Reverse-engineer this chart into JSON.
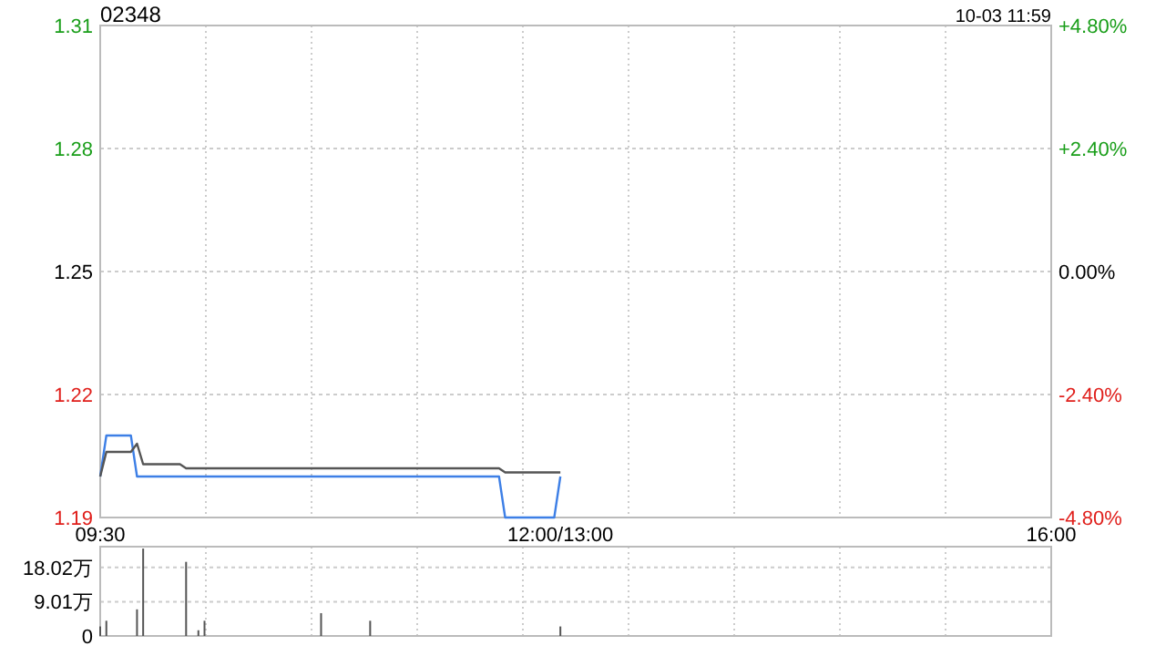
{
  "chart_data": [
    {
      "type": "line",
      "title": "02348",
      "annotations": [
        "10-03 11:59"
      ],
      "categories": [
        "09:30",
        null,
        null,
        null,
        null,
        null,
        null,
        null,
        null,
        null,
        null,
        null,
        null,
        null,
        null,
        null,
        null,
        null,
        null,
        null,
        null,
        null,
        null,
        null,
        null,
        null,
        null,
        null,
        null,
        null,
        null,
        null,
        null,
        null,
        null,
        null,
        null,
        null,
        null,
        null,
        null,
        null,
        null,
        null,
        null,
        null,
        null,
        null,
        null,
        null,
        null,
        null,
        null,
        null,
        null,
        null,
        null,
        null,
        null,
        null,
        null,
        null,
        null,
        null,
        null,
        null,
        null,
        null,
        null,
        null,
        null,
        null,
        null,
        null,
        null,
        "12:00/13:00",
        null,
        null,
        null,
        null,
        null,
        null,
        null,
        null,
        null,
        null,
        null,
        null,
        null,
        null,
        null,
        null,
        null,
        null,
        null,
        null,
        null,
        null,
        null,
        null,
        null,
        null,
        null,
        null,
        null,
        null,
        null,
        null,
        null,
        null,
        null,
        null,
        null,
        null,
        null,
        null,
        null,
        null,
        null,
        null,
        null,
        null,
        null,
        null,
        null,
        null,
        null,
        null,
        null,
        null,
        null,
        null,
        null,
        null,
        null,
        null,
        null,
        null,
        null,
        null,
        null,
        null,
        null,
        null,
        null,
        null,
        null,
        null,
        null,
        null,
        null,
        null,
        null,
        null,
        null,
        "16:00"
      ],
      "ylim": [
        1.19,
        1.31
      ],
      "yticks": [
        1.19,
        1.22,
        1.25,
        1.28,
        1.31
      ],
      "y2lim": [
        -4.8,
        4.8
      ],
      "y2ticks": [
        {
          "value": -4.8,
          "label": "-4.80%"
        },
        {
          "value": -2.4,
          "label": "-2.40%"
        },
        {
          "value": 0,
          "label": "0.00%"
        },
        {
          "value": 2.4,
          "label": "+2.40%"
        },
        {
          "value": 4.8,
          "label": "+4.80%"
        }
      ],
      "grid": true,
      "series": [
        {
          "color": "#3d7fe6",
          "values": [
            1.2,
            1.21,
            1.21,
            1.21,
            1.21,
            1.21,
            1.2,
            1.2,
            1.2,
            1.2,
            1.2,
            1.2,
            1.2,
            1.2,
            1.2,
            1.2,
            1.2,
            1.2,
            1.2,
            1.2,
            1.2,
            1.2,
            1.2,
            1.2,
            1.2,
            1.2,
            1.2,
            1.2,
            1.2,
            1.2,
            1.2,
            1.2,
            1.2,
            1.2,
            1.2,
            1.2,
            1.2,
            1.2,
            1.2,
            1.2,
            1.2,
            1.2,
            1.2,
            1.2,
            1.2,
            1.2,
            1.2,
            1.2,
            1.2,
            1.2,
            1.2,
            1.2,
            1.2,
            1.2,
            1.2,
            1.2,
            1.2,
            1.2,
            1.2,
            1.2,
            1.2,
            1.2,
            1.2,
            1.2,
            1.2,
            1.2,
            1.19,
            1.19,
            1.19,
            1.19,
            1.19,
            1.19,
            1.19,
            1.19,
            1.19,
            1.2,
            null,
            null,
            null,
            null,
            null,
            null,
            null,
            null,
            null,
            null,
            null,
            null,
            null,
            null,
            null,
            null,
            null,
            null,
            null,
            null,
            null,
            null,
            null,
            null,
            null,
            null,
            null,
            null,
            null,
            null,
            null,
            null,
            null,
            null,
            null,
            null,
            null,
            null,
            null,
            null,
            null,
            null,
            null,
            null,
            null,
            null,
            null,
            null,
            null,
            null,
            null,
            null,
            null,
            null,
            null,
            null,
            null,
            null,
            null,
            null,
            null,
            null,
            null,
            null,
            null,
            null,
            null,
            null,
            null,
            null,
            null,
            null,
            null,
            null,
            null,
            null,
            null,
            null,
            null,
            null
          ]
        },
        {
          "color": "#555555",
          "values": [
            1.2,
            1.206,
            1.206,
            1.206,
            1.206,
            1.206,
            1.208,
            1.203,
            1.203,
            1.203,
            1.203,
            1.203,
            1.203,
            1.203,
            1.202,
            1.202,
            1.202,
            1.202,
            1.202,
            1.202,
            1.202,
            1.202,
            1.202,
            1.202,
            1.202,
            1.202,
            1.202,
            1.202,
            1.202,
            1.202,
            1.202,
            1.202,
            1.202,
            1.202,
            1.202,
            1.202,
            1.202,
            1.202,
            1.202,
            1.202,
            1.202,
            1.202,
            1.202,
            1.202,
            1.202,
            1.202,
            1.202,
            1.202,
            1.202,
            1.202,
            1.202,
            1.202,
            1.202,
            1.202,
            1.202,
            1.202,
            1.202,
            1.202,
            1.202,
            1.202,
            1.202,
            1.202,
            1.202,
            1.202,
            1.202,
            1.202,
            1.201,
            1.201,
            1.201,
            1.201,
            1.201,
            1.201,
            1.201,
            1.201,
            1.201,
            1.201,
            null,
            null,
            null,
            null,
            null,
            null,
            null,
            null,
            null,
            null,
            null,
            null,
            null,
            null,
            null,
            null,
            null,
            null,
            null,
            null,
            null,
            null,
            null,
            null,
            null,
            null,
            null,
            null,
            null,
            null,
            null,
            null,
            null,
            null,
            null,
            null,
            null,
            null,
            null,
            null,
            null,
            null,
            null,
            null,
            null,
            null,
            null,
            null,
            null,
            null,
            null,
            null,
            null,
            null,
            null,
            null,
            null,
            null,
            null,
            null,
            null,
            null,
            null,
            null,
            null,
            null,
            null,
            null,
            null,
            null,
            null,
            null,
            null,
            null,
            null,
            null,
            null,
            null,
            null,
            null
          ]
        }
      ]
    },
    {
      "type": "bar",
      "categories": [
        null,
        null,
        null,
        null,
        null,
        null,
        null,
        null,
        null,
        null,
        null,
        null,
        null,
        null,
        null,
        null,
        null,
        null,
        null,
        null,
        null,
        null,
        null,
        null,
        null,
        null,
        null,
        null,
        null,
        null,
        null,
        null,
        null,
        null,
        null,
        null,
        null,
        null,
        null,
        null,
        null,
        null,
        null,
        null,
        null,
        null,
        null,
        null,
        null,
        null,
        null,
        null,
        null,
        null,
        null,
        null,
        null,
        null,
        null,
        null,
        null,
        null,
        null,
        null,
        null,
        null,
        null,
        null,
        null,
        null,
        null,
        null,
        null,
        null,
        null,
        null,
        null,
        null,
        null,
        null,
        null,
        null,
        null,
        null,
        null,
        null,
        null,
        null,
        null,
        null,
        null,
        null,
        null,
        null,
        null,
        null,
        null,
        null,
        null,
        null,
        null,
        null,
        null,
        null,
        null,
        null,
        null,
        null,
        null,
        null,
        null,
        null,
        null,
        null,
        null,
        null,
        null,
        null,
        null,
        null,
        null,
        null,
        null,
        null,
        null,
        null,
        null,
        null,
        null,
        null,
        null,
        null,
        null,
        null,
        null,
        null,
        null,
        null,
        null,
        null,
        null,
        null,
        null,
        null,
        null,
        null,
        null,
        null,
        null,
        null,
        null,
        null,
        null,
        null,
        null,
        null
      ],
      "ylim": [
        0,
        23.5
      ],
      "yticks": [
        {
          "value": 0,
          "label": "0"
        },
        {
          "value": 9.01,
          "label": "9.01万"
        },
        {
          "value": 18.02,
          "label": "18.02万"
        }
      ],
      "grid": true,
      "tick_labels": "y",
      "series": [
        {
          "color": "#555555",
          "values": [
            2.5,
            4,
            null,
            null,
            null,
            null,
            7,
            23,
            null,
            null,
            null,
            null,
            null,
            null,
            19.5,
            null,
            1.5,
            4,
            null,
            null,
            null,
            null,
            null,
            null,
            null,
            null,
            null,
            null,
            null,
            null,
            null,
            null,
            null,
            null,
            null,
            null,
            6,
            null,
            null,
            null,
            null,
            null,
            null,
            null,
            4,
            null,
            null,
            null,
            null,
            null,
            null,
            null,
            null,
            null,
            null,
            null,
            null,
            null,
            null,
            null,
            null,
            null,
            null,
            null,
            null,
            null,
            null,
            null,
            null,
            null,
            null,
            null,
            null,
            null,
            null,
            2.5,
            null,
            null,
            null,
            null,
            null,
            null,
            null,
            null,
            null,
            null,
            null,
            null,
            null,
            null,
            null,
            null,
            null,
            null,
            null,
            null,
            null,
            null,
            null,
            null,
            null,
            null,
            null,
            null,
            null,
            null,
            null,
            null,
            null,
            null,
            null,
            null,
            null,
            null,
            null,
            null,
            null,
            null,
            null,
            null,
            null,
            null,
            null,
            null,
            null,
            null,
            null,
            null,
            null,
            null,
            null,
            null,
            null,
            null,
            null,
            null,
            null,
            null,
            null,
            null,
            null,
            null,
            null,
            null,
            null,
            null,
            null,
            null,
            null,
            null,
            null,
            null,
            null,
            null,
            null,
            null
          ]
        }
      ]
    }
  ]
}
